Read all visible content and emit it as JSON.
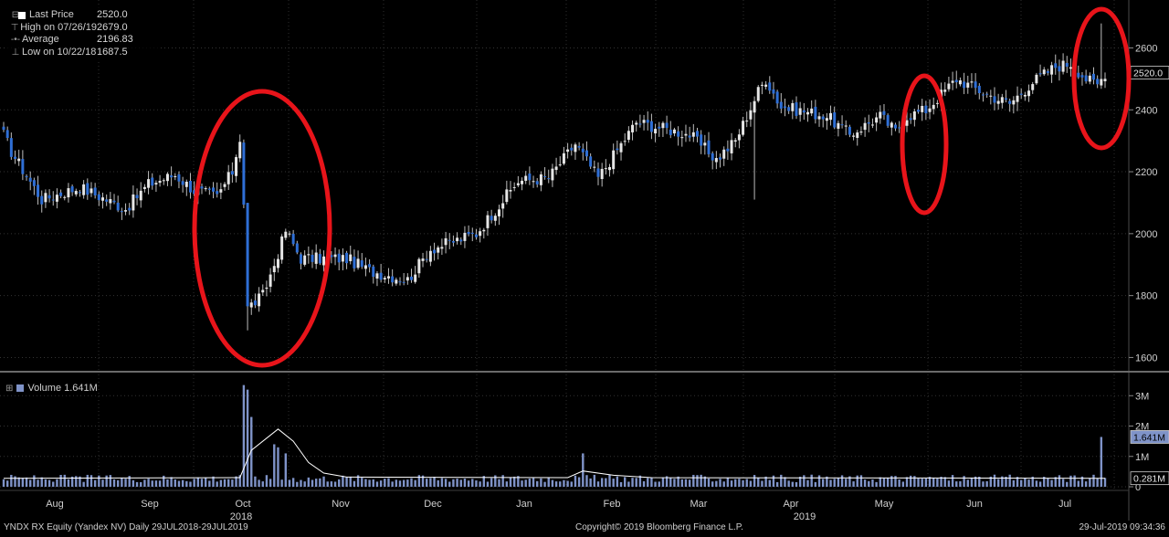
{
  "legend": {
    "last_price_label": "Last Price",
    "last_price_value": "2520.0",
    "high_label": "High on 07/26/19",
    "high_value": "2679.0",
    "average_label": "Average",
    "average_value": "2196.83",
    "low_label": "Low on 10/22/18",
    "low_value": "1687.5"
  },
  "volume_legend": {
    "label": "Volume 1.641M"
  },
  "footer": {
    "security": "YNDX RX Equity (Yandex NV)  Daily 29JUL2018-29JUL2019",
    "copyright": "Copyright© 2019 Bloomberg Finance L.P.",
    "timestamp": "29-Jul-2019 09:34:36"
  },
  "chart_data": {
    "type": "candlestick",
    "price_axis": {
      "ylim": [
        1560,
        2740
      ],
      "ticks": [
        1600,
        1800,
        2000,
        2200,
        2400,
        2600
      ]
    },
    "volume_axis": {
      "ylim": [
        0,
        3700000
      ],
      "ticks": [
        "3M",
        "2M",
        "1M",
        "0"
      ],
      "tick_values": [
        3000000,
        2000000,
        1000000,
        0
      ]
    },
    "x_labels": [
      "Aug",
      "Sep",
      "Oct",
      "Nov",
      "Dec",
      "Jan",
      "Feb",
      "Mar",
      "Apr",
      "May",
      "Jun",
      "Jul"
    ],
    "year_labels": [
      {
        "text": "2018",
        "after": "Oct"
      },
      {
        "text": "2019",
        "after": "Apr"
      }
    ],
    "last_price_tag": "2520.0",
    "volume_tags": [
      "1.641M",
      "0.281M"
    ],
    "close_anchors": [
      [
        0,
        2320
      ],
      [
        2,
        2265
      ],
      [
        10,
        2110
      ],
      [
        20,
        2150
      ],
      [
        32,
        2080
      ],
      [
        38,
        2160
      ],
      [
        45,
        2190
      ],
      [
        50,
        2140
      ],
      [
        56,
        2120
      ],
      [
        60,
        2200
      ],
      [
        62,
        2310
      ],
      [
        63,
        2100
      ],
      [
        64,
        1760
      ],
      [
        68,
        1800
      ],
      [
        71,
        1900
      ],
      [
        74,
        2010
      ],
      [
        78,
        1920
      ],
      [
        90,
        1920
      ],
      [
        96,
        1880
      ],
      [
        106,
        1850
      ],
      [
        112,
        1950
      ],
      [
        124,
        2000
      ],
      [
        135,
        2170
      ],
      [
        143,
        2180
      ],
      [
        150,
        2290
      ],
      [
        156,
        2180
      ],
      [
        166,
        2360
      ],
      [
        180,
        2320
      ],
      [
        187,
        2240
      ],
      [
        192,
        2300
      ],
      [
        198,
        2460
      ],
      [
        200,
        2500
      ],
      [
        204,
        2410
      ],
      [
        216,
        2380
      ],
      [
        222,
        2320
      ],
      [
        230,
        2380
      ],
      [
        234,
        2330
      ],
      [
        237,
        2380
      ],
      [
        242,
        2400
      ],
      [
        250,
        2500
      ],
      [
        258,
        2450
      ],
      [
        264,
        2420
      ],
      [
        270,
        2490
      ],
      [
        276,
        2540
      ],
      [
        280,
        2550
      ],
      [
        284,
        2500
      ],
      [
        287,
        2480
      ],
      [
        289,
        2520
      ]
    ],
    "volume_spikes": [
      [
        63,
        3350000
      ],
      [
        64,
        3200000
      ],
      [
        65,
        2300000
      ],
      [
        71,
        1400000
      ],
      [
        72,
        1300000
      ],
      [
        74,
        1100000
      ],
      [
        152,
        1100000
      ],
      [
        288,
        1641000
      ]
    ],
    "volume_average": [
      [
        0,
        280000
      ],
      [
        62,
        300000
      ],
      [
        65,
        1200000
      ],
      [
        72,
        1900000
      ],
      [
        76,
        1500000
      ],
      [
        80,
        800000
      ],
      [
        84,
        450000
      ],
      [
        90,
        320000
      ],
      [
        148,
        300000
      ],
      [
        152,
        520000
      ],
      [
        160,
        380000
      ],
      [
        170,
        300000
      ],
      [
        289,
        281000
      ]
    ]
  }
}
